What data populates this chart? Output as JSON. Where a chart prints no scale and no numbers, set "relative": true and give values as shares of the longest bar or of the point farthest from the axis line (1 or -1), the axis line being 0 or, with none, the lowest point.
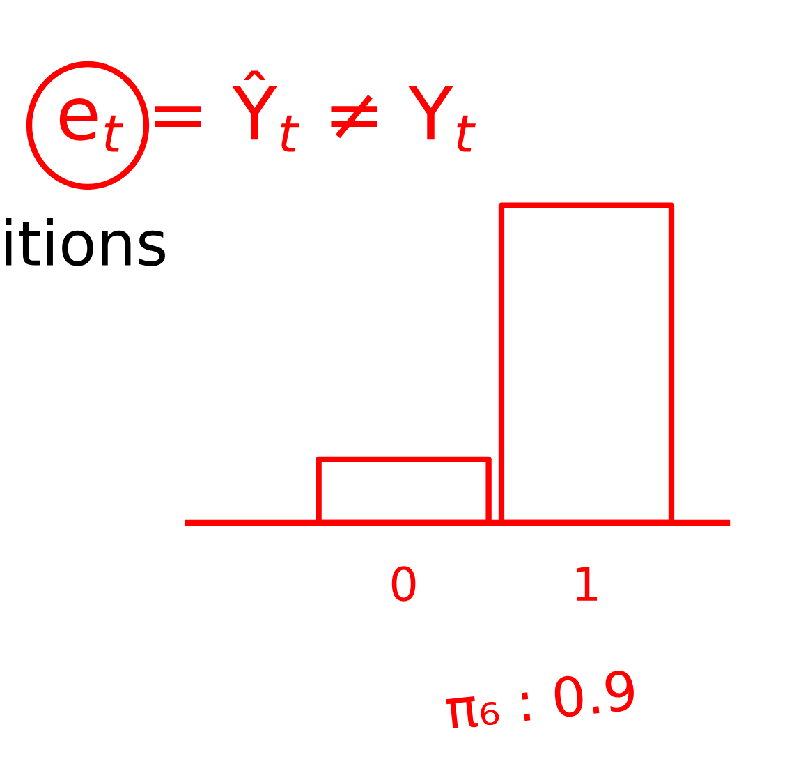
{
  "chart_data": {
    "type": "bar",
    "title": "e$_{t}$ = Ŷ$_{t}$ ≠ Y$_{t}$",
    "categories": [
      "0",
      "1"
    ],
    "values": [
      0.2,
      1
    ],
    "color": "#ff0000",
    "relative": true,
    "annotations": [
      "itions",
      "π₆ : 0.9"
    ]
  }
}
